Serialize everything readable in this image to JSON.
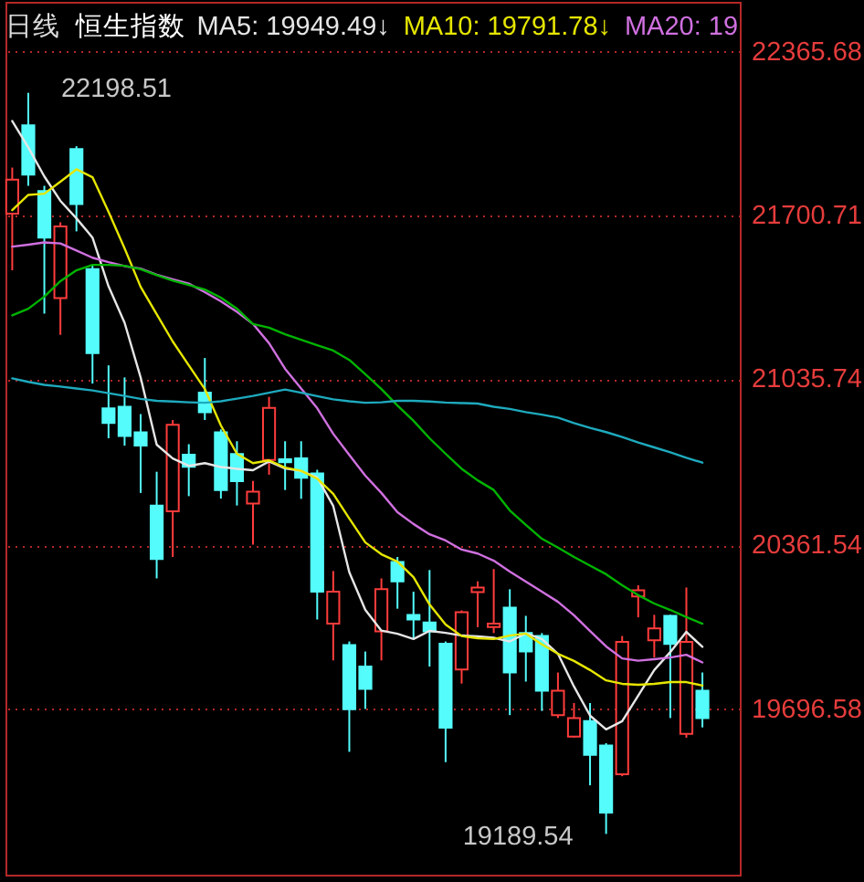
{
  "chart_data": {
    "type": "candlestick",
    "title": "恒生指数",
    "subtitle": "日线",
    "categories": [
      null,
      null,
      null,
      null,
      null,
      null,
      null,
      null,
      null,
      null,
      null,
      null,
      null,
      null,
      null,
      null,
      null,
      null,
      null,
      null,
      null,
      null,
      null,
      null,
      null,
      null,
      null,
      null,
      null,
      null,
      null,
      null,
      null,
      null,
      null,
      null,
      null,
      null,
      null,
      null,
      null,
      null,
      null,
      null
    ],
    "ohlc": [
      [
        21708,
        21895,
        21478,
        21846
      ],
      [
        22067,
        22198.51,
        21821,
        21866
      ],
      [
        21800,
        21821,
        21302,
        21611
      ],
      [
        21365,
        21673,
        21216,
        21656
      ],
      [
        21970,
        21982,
        21636,
        21747
      ],
      [
        21483,
        21500,
        21018,
        21142
      ],
      [
        20917,
        21092,
        20796,
        20858
      ],
      [
        20924,
        21043,
        20766,
        20805
      ],
      [
        20820,
        20894,
        20574,
        20766
      ],
      [
        20523,
        20660,
        20227,
        20306
      ],
      [
        20499,
        20870,
        20314,
        20851
      ],
      [
        20729,
        20772,
        20561,
        20680
      ],
      [
        20981,
        21122,
        20870,
        20902
      ],
      [
        20820,
        20832,
        20551,
        20586
      ],
      [
        20732,
        20784,
        20523,
        20622
      ],
      [
        20531,
        20623,
        20364,
        20579
      ],
      [
        20708,
        20964,
        20648,
        20919
      ],
      [
        20711,
        20784,
        20586,
        20699
      ],
      [
        20714,
        20784,
        20550,
        20636
      ],
      [
        20653,
        20668,
        20060,
        20173
      ],
      [
        20043,
        20257,
        19894,
        20173
      ],
      [
        19956,
        19971,
        19523,
        19696
      ],
      [
        19869,
        19930,
        19697,
        19778
      ],
      [
        20012,
        20227,
        19894,
        20183
      ],
      [
        20294,
        20314,
        20104,
        20215
      ],
      [
        20079,
        20173,
        19981,
        20060
      ],
      [
        20048,
        20261,
        19869,
        20012
      ],
      [
        19962,
        19971,
        19481,
        19621
      ],
      [
        19857,
        20097,
        19800,
        20090
      ],
      [
        20171,
        20215,
        20029,
        20190
      ],
      [
        20030,
        20265,
        20005,
        20043
      ],
      [
        20108,
        20183,
        19672,
        19845
      ],
      [
        20005,
        20075,
        19808,
        19930
      ],
      [
        19993,
        20005,
        19689,
        19771
      ],
      [
        19672,
        19845,
        19660,
        19771
      ],
      [
        19585,
        19721,
        19580,
        19660
      ],
      [
        19648,
        19721,
        19387,
        19511
      ],
      [
        19549,
        19558,
        19189.54,
        19276
      ],
      [
        19432,
        19993,
        19424,
        19969
      ],
      [
        20154,
        20199,
        20069,
        20179
      ],
      [
        19976,
        20079,
        19906,
        20024
      ],
      [
        20075,
        20079,
        19660,
        19961
      ],
      [
        19596,
        20190,
        19580,
        19969
      ],
      [
        19771,
        19845,
        19622,
        19660
      ]
    ],
    "colors": [
      "#ff3c3c",
      "#54fcfc",
      "#54fcfc",
      "#ff3c3c",
      "#54fcfc",
      "#54fcfc",
      "#54fcfc",
      "#54fcfc",
      "#54fcfc",
      "#54fcfc",
      "#ff3c3c",
      "#54fcfc",
      "#54fcfc",
      "#54fcfc",
      "#54fcfc",
      "#ff3c3c",
      "#ff3c3c",
      "#54fcfc",
      "#54fcfc",
      "#54fcfc",
      "#ff3c3c",
      "#54fcfc",
      "#54fcfc",
      "#ff3c3c",
      "#54fcfc",
      "#54fcfc",
      "#54fcfc",
      "#54fcfc",
      "#ff3c3c",
      "#ff3c3c",
      "#ff3c3c",
      "#54fcfc",
      "#54fcfc",
      "#54fcfc",
      "#ff3c3c",
      "#ff3c3c",
      "#54fcfc",
      "#54fcfc",
      "#ff3c3c",
      "#ff3c3c",
      "#ff3c3c",
      "#54fcfc",
      "#ff3c3c",
      "#54fcfc"
    ],
    "series": [
      {
        "name": "MA5: 19949.49↓",
        "type": "line",
        "color": "#e6e6e6",
        "values": [
          22084,
          21977,
          21859,
          21760,
          21689,
          21611,
          21413,
          21265,
          21043,
          20770,
          20714,
          20684,
          20695,
          20679,
          20672,
          20666,
          20702,
          20673,
          20663,
          20637,
          20521,
          20252,
          20099,
          20015,
          20002,
          19981,
          20014,
          20006,
          19995,
          19992,
          19986,
          19971,
          20004,
          19981,
          19921,
          19788,
          19670,
          19614,
          19647,
          19751,
          19855,
          19928,
          20010,
          19949
        ]
      },
      {
        "name": "MA10: 19791.78↓",
        "type": "line",
        "color": "#e6e600",
        "values": [
          21722,
          21784,
          21789,
          21838,
          21888,
          21856,
          21715,
          21567,
          21411,
          21300,
          21189,
          21092,
          20996,
          20848,
          20733,
          20695,
          20706,
          20677,
          20664,
          20632,
          20570,
          20470,
          20373,
          20325,
          20295,
          20232,
          20121,
          20040,
          19993,
          19984,
          19981,
          19995,
          20003,
          19959,
          19921,
          19892,
          19855,
          19813,
          19799,
          19795,
          19799,
          19806,
          19806,
          19792
        ]
      },
      {
        "name": "MA20: 19",
        "type": "line",
        "color": "#d070e0",
        "values": [
          21574,
          21582,
          21591,
          21587,
          21558,
          21529,
          21511,
          21495,
          21485,
          21460,
          21441,
          21424,
          21389,
          21352,
          21309,
          21260,
          21182,
          21078,
          20998,
          20918,
          20814,
          20728,
          20644,
          20574,
          20496,
          20448,
          20406,
          20381,
          20344,
          20328,
          20299,
          20255,
          20214,
          20173,
          20132,
          20077,
          20013,
          19951,
          19902,
          19893,
          19899,
          19906,
          19917,
          19886
        ]
      },
      {
        "type": "line",
        "color": "#00b400",
        "values": [
          21295,
          21322,
          21371,
          21434,
          21478,
          21500,
          21500,
          21496,
          21482,
          21458,
          21436,
          21418,
          21400,
          21367,
          21322,
          21260,
          21245,
          21218,
          21196,
          21174,
          21152,
          21114,
          21056,
          20996,
          20929,
          20867,
          20796,
          20733,
          20672,
          20625,
          20586,
          20503,
          20444,
          20388,
          20352,
          20314,
          20279,
          20244,
          20199,
          20159,
          20125,
          20099,
          20070,
          20043
        ]
      },
      {
        "type": "line",
        "color": "#1eaabe",
        "values": [
          21039,
          21025,
          21013,
          21006,
          20998,
          20990,
          20979,
          20968,
          20956,
          20948,
          20945,
          20942,
          20940,
          20946,
          20957,
          20968,
          20981,
          20994,
          20981,
          20967,
          20954,
          20946,
          20940,
          20942,
          20948,
          20948,
          20945,
          20941,
          20939,
          20937,
          20924,
          20915,
          20902,
          20892,
          20880,
          20858,
          20838,
          20821,
          20801,
          20779,
          20759,
          20739,
          20717,
          20697
        ]
      }
    ],
    "ylim": [
      19024,
      22568
    ],
    "yticks": [
      22365.68,
      21700.71,
      21035.74,
      20361.54,
      19696.58
    ],
    "grid": "y",
    "legend": "top right",
    "tick_labels": "y",
    "annotations": [
      "22198.51",
      "19189.54"
    ]
  }
}
